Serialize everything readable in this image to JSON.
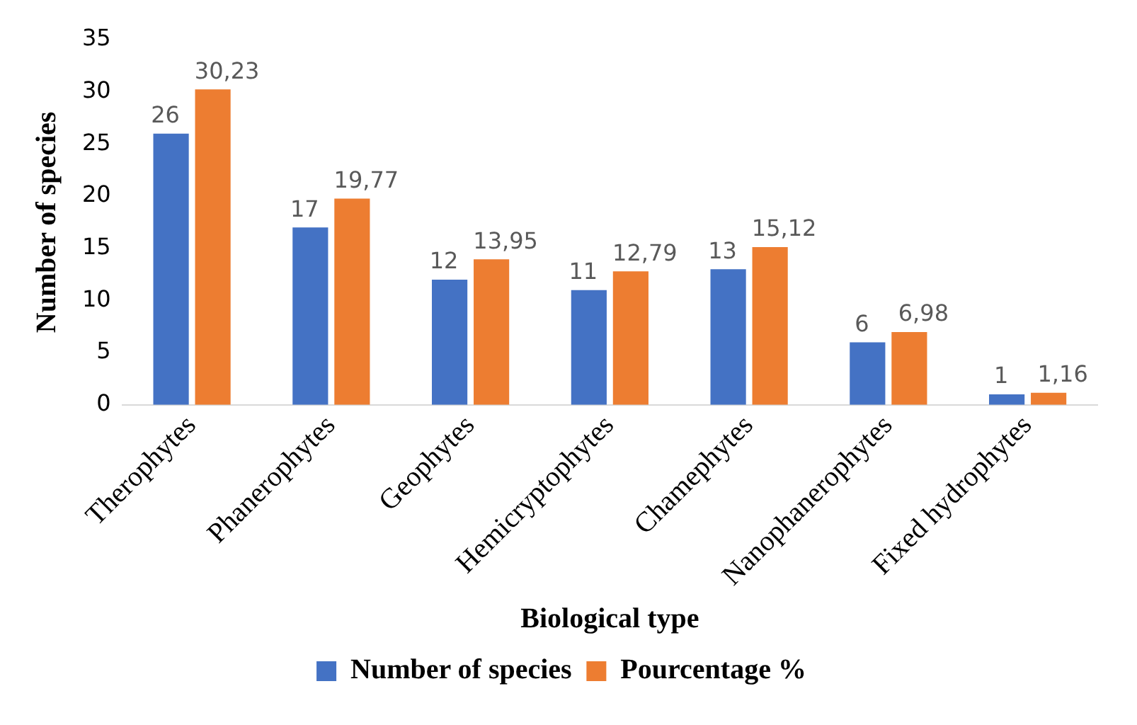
{
  "chart_data": {
    "type": "bar",
    "xlabel": "Biological type",
    "ylabel": "Number of species",
    "categories": [
      "Therophytes",
      "Phanerophytes",
      "Geophytes",
      "Hemicryptophytes",
      "Chamephytes",
      "Nanophanerophytes",
      "Fixed hydrophytes"
    ],
    "series": [
      {
        "name": "Number of species",
        "color": "#4472c4",
        "values": [
          26,
          17,
          12,
          11,
          13,
          6,
          1
        ],
        "value_labels": [
          "26",
          "17",
          "12",
          "11",
          "13",
          "6",
          "1"
        ]
      },
      {
        "name": "Pourcentage %",
        "color": "#ed7d31",
        "values": [
          30.23,
          19.77,
          13.95,
          12.79,
          15.12,
          6.98,
          1.16
        ],
        "value_labels": [
          "30,23",
          "19,77",
          "13,95",
          "12,79",
          "15,12",
          "6,98",
          "1,16"
        ]
      }
    ],
    "ylim": [
      0,
      35
    ],
    "yticks": [
      0,
      5,
      10,
      15,
      20,
      25,
      30,
      35
    ],
    "grid": false,
    "legend": "bottom"
  }
}
